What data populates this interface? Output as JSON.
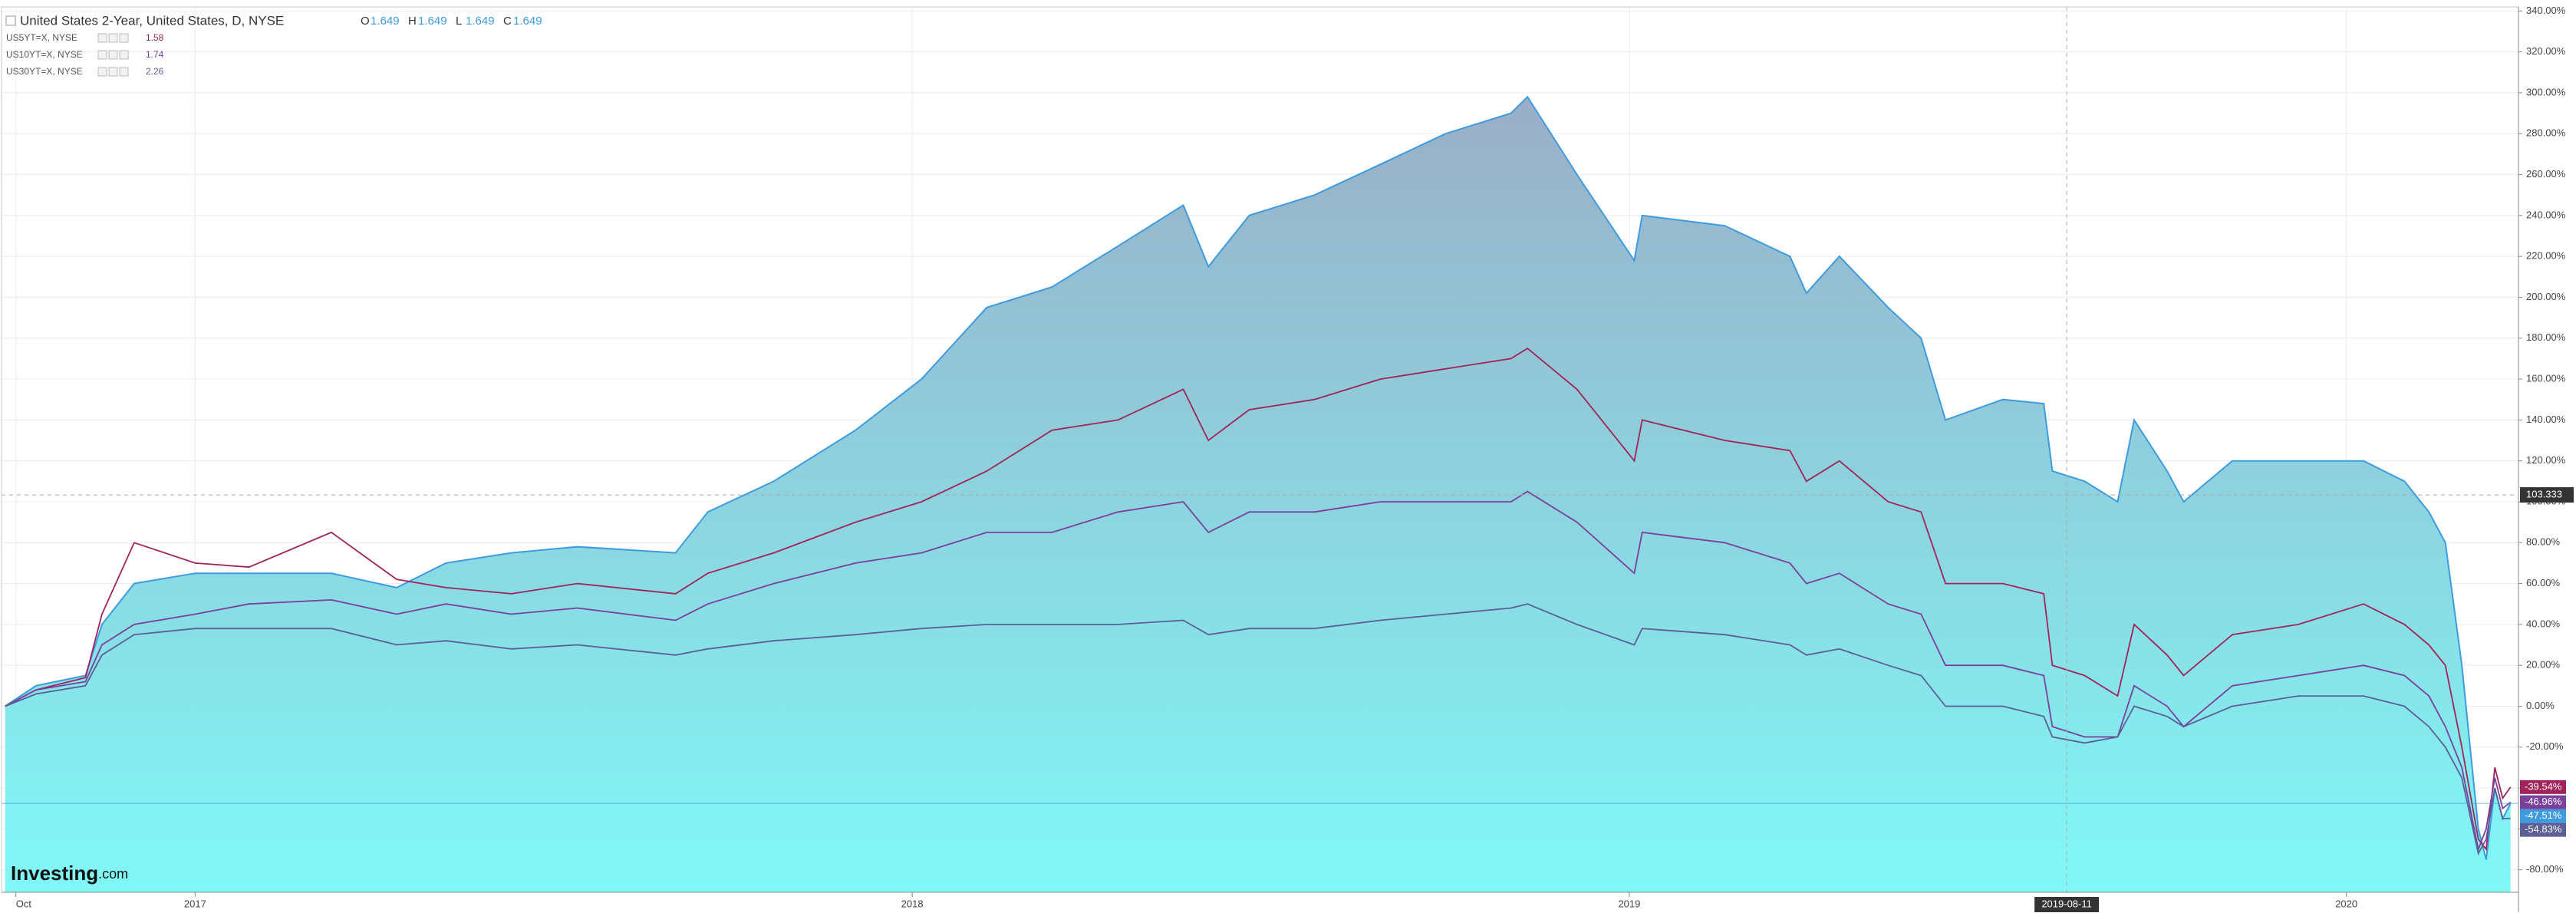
{
  "chart_data": {
    "type": "area-compare",
    "title": "United States 2-Year, United States, D, NYSE",
    "ohlc": [
      {
        "label": "O",
        "value": 1.649
      },
      {
        "label": "H",
        "value": 1.649
      },
      {
        "label": "L",
        "value": 1.649
      },
      {
        "label": "C",
        "value": 1.649
      }
    ],
    "x": [
      2016.735,
      2016.778,
      2016.847,
      2016.87,
      2016.915,
      2017.0,
      2017.075,
      2017.19,
      2017.281,
      2017.35,
      2017.441,
      2017.533,
      2017.67,
      2017.715,
      2017.807,
      2017.921,
      2018.013,
      2018.104,
      2018.195,
      2018.287,
      2018.378,
      2018.413,
      2018.47,
      2018.561,
      2018.653,
      2018.744,
      2018.835,
      2018.858,
      2018.927,
      2019.007,
      2019.018,
      2019.133,
      2019.224,
      2019.247,
      2019.293,
      2019.361,
      2019.407,
      2019.441,
      2019.521,
      2019.578,
      2019.59,
      2019.635,
      2019.681,
      2019.704,
      2019.75,
      2019.773,
      2019.841,
      2019.933,
      2020.024,
      2020.081,
      2020.115,
      2020.138,
      2020.161,
      2020.184,
      2020.195,
      2020.207,
      2020.218,
      2020.229
    ],
    "series": [
      {
        "name": "United States 2-Year",
        "color": "#3d9be0",
        "last_label": "-47.51%",
        "values": [
          0,
          10,
          15,
          40,
          60,
          65,
          65,
          65,
          58,
          70,
          75,
          78,
          75,
          95,
          110,
          135,
          160,
          195,
          205,
          225,
          245,
          215,
          240,
          250,
          265,
          280,
          290,
          298,
          260,
          218,
          240,
          235,
          220,
          202,
          220,
          195,
          180,
          140,
          150,
          148,
          115,
          110,
          100,
          140,
          115,
          100,
          120,
          120,
          120,
          110,
          95,
          80,
          20,
          -60,
          -75,
          -40,
          -55,
          -47.51
        ]
      },
      {
        "name": "US5YT=X, NYSE",
        "color": "#a0245a",
        "last": 1.58,
        "last_label": "-39.54%",
        "values": [
          0,
          8,
          14,
          45,
          80,
          70,
          68,
          85,
          62,
          58,
          55,
          60,
          55,
          65,
          75,
          90,
          100,
          115,
          135,
          140,
          155,
          130,
          145,
          150,
          160,
          165,
          170,
          175,
          155,
          120,
          140,
          130,
          125,
          110,
          120,
          100,
          95,
          60,
          60,
          55,
          20,
          15,
          5,
          40,
          25,
          15,
          35,
          40,
          50,
          40,
          30,
          20,
          -20,
          -65,
          -70,
          -30,
          -45,
          -39.54
        ]
      },
      {
        "name": "US10YT=X, NYSE",
        "color": "#7b3f9c",
        "last": 1.74,
        "last_label": "-46.96%",
        "values": [
          0,
          8,
          12,
          30,
          40,
          45,
          50,
          52,
          45,
          50,
          45,
          48,
          42,
          50,
          60,
          70,
          75,
          85,
          85,
          95,
          100,
          85,
          95,
          95,
          100,
          100,
          100,
          105,
          90,
          65,
          85,
          80,
          70,
          60,
          65,
          50,
          45,
          20,
          20,
          15,
          -10,
          -15,
          -15,
          10,
          0,
          -10,
          10,
          15,
          20,
          15,
          5,
          -10,
          -30,
          -70,
          -60,
          -35,
          -50,
          -46.96
        ]
      },
      {
        "name": "US30YT=X, NYSE",
        "color": "#5b5f96",
        "last": 2.26,
        "last_label": "-54.83%",
        "values": [
          0,
          6,
          10,
          25,
          35,
          38,
          38,
          38,
          30,
          32,
          28,
          30,
          25,
          28,
          32,
          35,
          38,
          40,
          40,
          40,
          42,
          35,
          38,
          38,
          42,
          45,
          48,
          50,
          40,
          30,
          38,
          35,
          30,
          25,
          28,
          20,
          15,
          0,
          0,
          -5,
          -15,
          -18,
          -15,
          0,
          -5,
          -10,
          0,
          5,
          5,
          0,
          -10,
          -20,
          -35,
          -72,
          -65,
          -40,
          -55,
          -54.83
        ]
      }
    ],
    "xlim": [
      2016.73,
      2020.24
    ],
    "xticks": [
      {
        "value": 2016.75,
        "label": "Oct"
      },
      2017,
      2018,
      2019,
      2020
    ],
    "ylim": [
      -91,
      342
    ],
    "yticks": [
      {
        "value": -80,
        "label": "-80.00%"
      },
      {
        "value": -60,
        "label": "-60.00%"
      },
      {
        "value": -40,
        "label": "-40.00%"
      },
      {
        "value": -20,
        "label": "-20.00%"
      },
      {
        "value": 0,
        "label": "0.00%"
      },
      {
        "value": 20,
        "label": "20.00%"
      },
      {
        "value": 40,
        "label": "40.00%"
      },
      {
        "value": 60,
        "label": "60.00%"
      },
      {
        "value": 80,
        "label": "80.00%"
      },
      {
        "value": 100,
        "label": "100.00%"
      },
      {
        "value": 120,
        "label": "120.00%"
      },
      {
        "value": 140,
        "label": "140.00%"
      },
      {
        "value": 160,
        "label": "160.00%"
      },
      {
        "value": 180,
        "label": "180.00%"
      },
      {
        "value": 200,
        "label": "200.00%"
      },
      {
        "value": 220,
        "label": "220.00%"
      },
      {
        "value": 240,
        "label": "240.00%"
      },
      {
        "value": 260,
        "label": "260.00%"
      },
      {
        "value": 280,
        "label": "280.00%"
      },
      {
        "value": 300,
        "label": "300.00%"
      },
      {
        "value": 320,
        "label": "320.00%"
      },
      {
        "value": 340,
        "label": "340.00%"
      }
    ],
    "grid": true,
    "crosshair": {
      "x": 2019.61,
      "x_label": "2019-08-11",
      "y": 103.333
    },
    "branding": "Investing",
    "branding_suffix": ".com"
  }
}
